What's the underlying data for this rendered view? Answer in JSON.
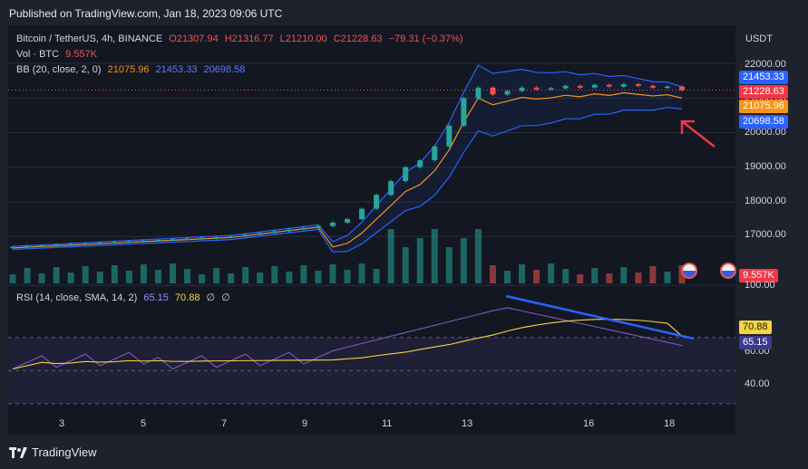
{
  "header": {
    "published": "Published on TradingView.com, Jan 18, 2023 09:06 UTC"
  },
  "legend": {
    "symbol": "Bitcoin / TetherUS, 4h, BINANCE",
    "open": "O21307.94",
    "high": "H21316.77",
    "low": "L21210.00",
    "close": "C21228.63",
    "change": "−79.31 (−0.37%)",
    "vol_label": "Vol · BTC",
    "vol_value": "9.557K",
    "bb_label": "BB (20, close, 2, 0)",
    "bb_basis": "21075.96",
    "bb_upper": "21453.33",
    "bb_lower": "20698.58",
    "rsi_label": "RSI (14, close, SMA, 14, 2)",
    "rsi_value": "65.15",
    "rsi_sma": "70.88",
    "rsi_extra1": "∅",
    "rsi_extra2": "∅"
  },
  "axis": {
    "currency": "USDT",
    "price_ticks": [
      "22000.00",
      "21000.00",
      "20000.00",
      "19000.00",
      "18000.00",
      "17000.00"
    ],
    "rsi_ticks": [
      "100.00",
      "60.00",
      "40.00"
    ],
    "x_ticks": [
      "3",
      "5",
      "7",
      "9",
      "11",
      "13",
      "16",
      "18"
    ]
  },
  "badges": {
    "upper": "21453.33",
    "last": "21228.63",
    "basis": "21075.96",
    "lower": "20698.58",
    "volume": "9.557K",
    "rsi_sma": "70.88",
    "rsi": "65.15"
  },
  "footer": {
    "brand": "TradingView"
  },
  "colors": {
    "background": "#131722",
    "up": "#26a69a",
    "down": "#ef5350",
    "basis": "#f7931a",
    "bands": "#2962ff",
    "rsi": "#7e57c2",
    "rsi_sma": "#f5d442",
    "annotation_arrow": "#f23645",
    "trendline": "#2962ff"
  },
  "chart_data": {
    "type": "candlestick",
    "x_ticks": [
      "3",
      "5",
      "7",
      "9",
      "11",
      "13",
      "16",
      "18"
    ],
    "close_approx": [
      16700,
      16720,
      16740,
      16760,
      16780,
      16800,
      16820,
      16840,
      16860,
      16880,
      16900,
      16920,
      16940,
      16960,
      16980,
      17000,
      17050,
      17100,
      17150,
      17200,
      17250,
      17300,
      17400,
      17500,
      17800,
      18200,
      18600,
      19000,
      19200,
      19600,
      20200,
      21000,
      21300,
      21100,
      21200,
      21300,
      21250,
      21280,
      21350,
      21300,
      21380,
      21330,
      21400,
      21350,
      21300,
      21330,
      21229
    ],
    "bollinger": {
      "upper_last": 21453.33,
      "basis_last": 21075.96,
      "lower_last": 20698.58
    },
    "volume_last": "9.557K",
    "rsi": {
      "last": 65.15,
      "sma_last": 70.88
    },
    "price_ylim": [
      16400,
      22300
    ],
    "rsi_ylim": [
      25,
      100
    ],
    "last_price": 21228.63
  }
}
